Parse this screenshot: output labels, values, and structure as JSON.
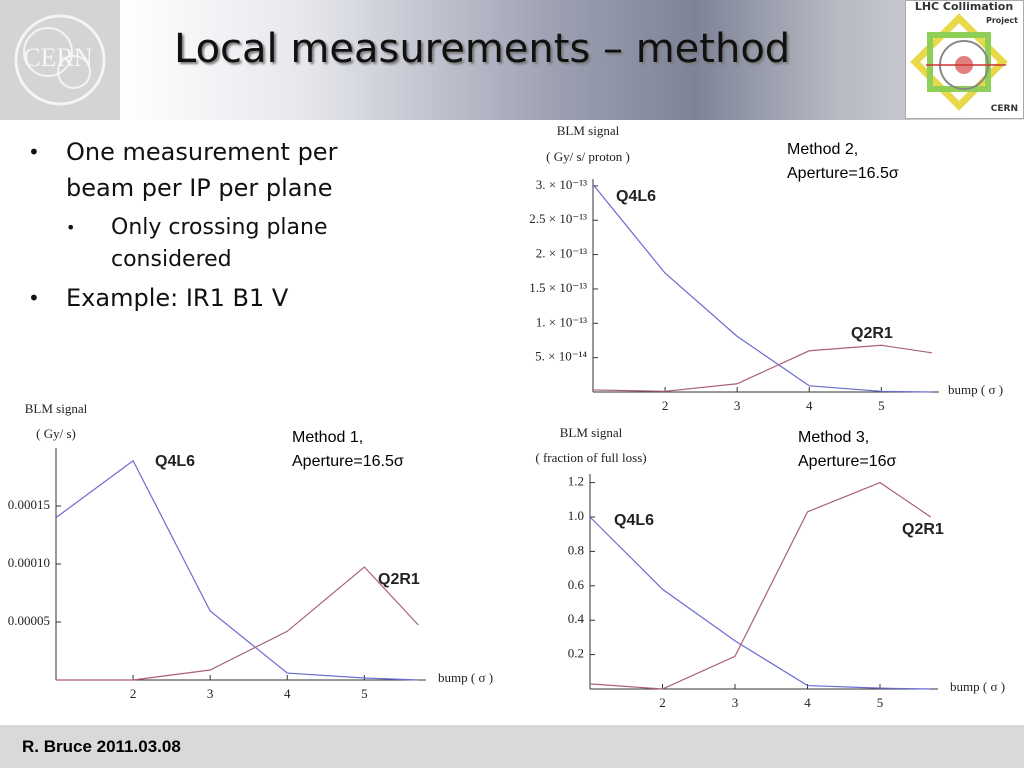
{
  "header": {
    "title": "Local measurements – method",
    "logo_left": "CERN",
    "logo_right": [
      "LHC Collimation",
      "Project",
      "CERN"
    ]
  },
  "bullets": [
    {
      "text": "One measurement per beam per IP per plane",
      "sub": [
        "Only crossing plane considered"
      ]
    },
    {
      "text": "Example: IR1 B1 V"
    }
  ],
  "footer": "R. Bruce 2011.03.08",
  "chart_data": [
    {
      "type": "line",
      "ylabel": "BLM signal",
      "yunit": "( Gy/ s/ proton )",
      "xlabel": "bump ( σ )",
      "annotation": [
        "Method 2,",
        "Aperture=16.5σ"
      ],
      "x": [
        1,
        2,
        3,
        4,
        5,
        5.7
      ],
      "series": [
        {
          "name": "Q4L6",
          "color": "#6b6bd2",
          "label_color": "#2e2e9e",
          "values": [
            3.02e-13,
            1.73e-13,
            8.1e-14,
            9e-15,
            1e-15,
            0
          ]
        },
        {
          "name": "Q2R1",
          "color": "#aa6079",
          "label_color": "#7b2d8b",
          "values": [
            3e-15,
            1e-15,
            1.2e-14,
            6e-14,
            6.8e-14,
            5.7e-14
          ]
        }
      ],
      "xlim": [
        1,
        5.8
      ],
      "ylim": [
        0,
        3.1e-13
      ],
      "xticks": [
        2,
        3,
        4,
        5
      ],
      "yticks": [
        {
          "value": 3e-13,
          "label": "3. × 10⁻¹³"
        },
        {
          "value": 2.5e-13,
          "label": "2.5 × 10⁻¹³"
        },
        {
          "value": 2e-13,
          "label": "2. × 10⁻¹³"
        },
        {
          "value": 1.5e-13,
          "label": "1.5 × 10⁻¹³"
        },
        {
          "value": 1e-13,
          "label": "1. × 10⁻¹³"
        },
        {
          "value": 5e-14,
          "label": "5. × 10⁻¹⁴"
        }
      ]
    },
    {
      "type": "line",
      "ylabel": "BLM signal",
      "yunit": "( Gy/ s)",
      "xlabel": "bump ( σ )",
      "annotation": [
        "Method 1,",
        "Aperture=16.5σ"
      ],
      "x": [
        1,
        2,
        3,
        4,
        5,
        5.7
      ],
      "series": [
        {
          "name": "Q4L6",
          "color": "#6b6bd2",
          "label_color": "#2e2e9e",
          "values": [
            0.00014,
            0.000189,
            5.95e-05,
            6e-06,
            1.7e-06,
            0
          ]
        },
        {
          "name": "Q2R1",
          "color": "#aa6079",
          "label_color": "#7b2d8b",
          "values": [
            0,
            0,
            8.6e-06,
            4.2e-05,
            9.74e-05,
            4.74e-05
          ]
        }
      ],
      "xlim": [
        1,
        5.8
      ],
      "ylim": [
        0,
        0.0002
      ],
      "xticks": [
        2,
        3,
        4,
        5
      ],
      "yticks": [
        0.00015,
        {
          "value": 0.0001,
          "label": "0.00010"
        },
        5e-05
      ]
    },
    {
      "type": "line",
      "ylabel": "BLM signal",
      "yunit": "( fraction of full loss)",
      "xlabel": "bump ( σ )",
      "annotation": [
        "Method 3,",
        "Aperture=16σ"
      ],
      "x": [
        1,
        2,
        3,
        4,
        5,
        5.7
      ],
      "series": [
        {
          "name": "Q4L6",
          "color": "#6b6bd2",
          "label_color": "#2e2e9e",
          "values": [
            1.0,
            0.58,
            0.28,
            0.02,
            0.005,
            0
          ]
        },
        {
          "name": "Q2R1",
          "color": "#aa6079",
          "label_color": "#7b2d8b",
          "values": [
            0.03,
            0,
            0.19,
            1.03,
            1.2,
            1.0
          ]
        }
      ],
      "xlim": [
        1,
        5.8
      ],
      "ylim": [
        0,
        1.25
      ],
      "xticks": [
        2,
        3,
        4,
        5
      ],
      "yticks": [
        {
          "value": 1.2,
          "label": "1.2"
        },
        {
          "value": 1,
          "label": "1.0"
        },
        0.8,
        0.6,
        0.4,
        0.2
      ]
    }
  ]
}
